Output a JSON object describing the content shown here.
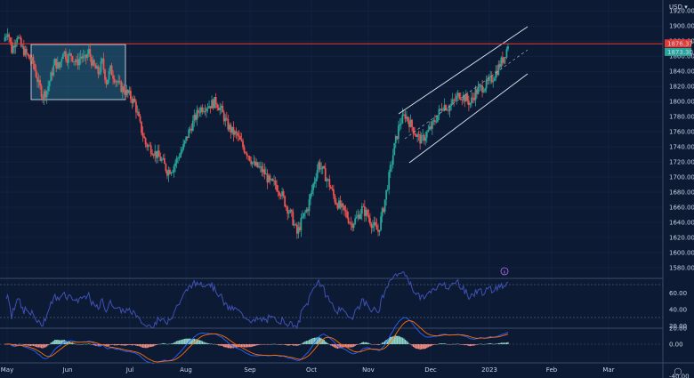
{
  "chart_data": {
    "type": "candlestick",
    "currency_label": "USD",
    "dropdown_glyph": "▾",
    "price_axis_ticks": [
      1580,
      1600,
      1620,
      1640,
      1660,
      1680,
      1700,
      1720,
      1740,
      1760,
      1780,
      1800,
      1820,
      1840,
      1860,
      1880,
      1900,
      1920
    ],
    "price_axis_tick_labels": [
      "1580.00",
      "1600.00",
      "1620.00",
      "1640.00",
      "1660.00",
      "1680.00",
      "1700.00",
      "1720.00",
      "1740.00",
      "1760.00",
      "1780.00",
      "1800.00",
      "1820.00",
      "1840.00",
      "1860.00",
      "1880.00",
      "1900.00",
      "1920.00"
    ],
    "ylim": [
      1567,
      1925
    ],
    "horizontal_line": {
      "value": 1876.37,
      "label": "1876.37",
      "color": "#e53935"
    },
    "last_price": {
      "value": 1873.3,
      "label": "1873.30",
      "color": "#26a69a"
    },
    "months": [
      "May",
      "Jun",
      "Jul",
      "Aug",
      "Sep",
      "Oct",
      "Nov",
      "Dec",
      "2023",
      "Feb",
      "Mar"
    ],
    "rsi": {
      "ticks": [
        20,
        40,
        60
      ],
      "tick_labels": [
        "20.00",
        "40.00",
        "60.00"
      ],
      "levels": [
        30,
        70
      ],
      "color": "#3f51b5"
    },
    "macd": {
      "ticks": [
        -40,
        0,
        20
      ],
      "tick_labels": [
        "-40.00",
        "0.00",
        "20.00"
      ]
    },
    "price_series": [
      {
        "t": 0,
        "c": 1880
      },
      {
        "t": 3,
        "c": 1895
      },
      {
        "t": 6,
        "c": 1868
      },
      {
        "t": 10,
        "c": 1888
      },
      {
        "t": 13,
        "c": 1872
      },
      {
        "t": 17,
        "c": 1862
      },
      {
        "t": 22,
        "c": 1850
      },
      {
        "t": 26,
        "c": 1822
      },
      {
        "t": 29,
        "c": 1808
      },
      {
        "t": 32,
        "c": 1815
      },
      {
        "t": 35,
        "c": 1833
      },
      {
        "t": 38,
        "c": 1852
      },
      {
        "t": 41,
        "c": 1845
      },
      {
        "t": 44,
        "c": 1868
      },
      {
        "t": 47,
        "c": 1858
      },
      {
        "t": 50,
        "c": 1862
      },
      {
        "t": 54,
        "c": 1850
      },
      {
        "t": 57,
        "c": 1860
      },
      {
        "t": 60,
        "c": 1855
      },
      {
        "t": 63,
        "c": 1866
      },
      {
        "t": 66,
        "c": 1848
      },
      {
        "t": 70,
        "c": 1838
      },
      {
        "t": 73,
        "c": 1852
      },
      {
        "t": 76,
        "c": 1826
      },
      {
        "t": 79,
        "c": 1842
      },
      {
        "t": 82,
        "c": 1832
      },
      {
        "t": 85,
        "c": 1822
      },
      {
        "t": 89,
        "c": 1815
      },
      {
        "t": 93,
        "c": 1808
      },
      {
        "t": 97,
        "c": 1798
      },
      {
        "t": 101,
        "c": 1768
      },
      {
        "t": 105,
        "c": 1744
      },
      {
        "t": 109,
        "c": 1738
      },
      {
        "t": 113,
        "c": 1730
      },
      {
        "t": 117,
        "c": 1722
      },
      {
        "t": 121,
        "c": 1708
      },
      {
        "t": 125,
        "c": 1712
      },
      {
        "t": 129,
        "c": 1726
      },
      {
        "t": 133,
        "c": 1740
      },
      {
        "t": 137,
        "c": 1760
      },
      {
        "t": 141,
        "c": 1776
      },
      {
        "t": 145,
        "c": 1790
      },
      {
        "t": 149,
        "c": 1794
      },
      {
        "t": 153,
        "c": 1796
      },
      {
        "t": 157,
        "c": 1800
      },
      {
        "t": 161,
        "c": 1788
      },
      {
        "t": 165,
        "c": 1770
      },
      {
        "t": 169,
        "c": 1760
      },
      {
        "t": 173,
        "c": 1754
      },
      {
        "t": 177,
        "c": 1740
      },
      {
        "t": 181,
        "c": 1730
      },
      {
        "t": 185,
        "c": 1716
      },
      {
        "t": 189,
        "c": 1712
      },
      {
        "t": 193,
        "c": 1705
      },
      {
        "t": 197,
        "c": 1692
      },
      {
        "t": 201,
        "c": 1690
      },
      {
        "t": 205,
        "c": 1680
      },
      {
        "t": 209,
        "c": 1662
      },
      {
        "t": 213,
        "c": 1648
      },
      {
        "t": 217,
        "c": 1625
      },
      {
        "t": 221,
        "c": 1645
      },
      {
        "t": 225,
        "c": 1660
      },
      {
        "t": 229,
        "c": 1690
      },
      {
        "t": 233,
        "c": 1718
      },
      {
        "t": 237,
        "c": 1705
      },
      {
        "t": 241,
        "c": 1690
      },
      {
        "t": 245,
        "c": 1670
      },
      {
        "t": 249,
        "c": 1660
      },
      {
        "t": 253,
        "c": 1652
      },
      {
        "t": 257,
        "c": 1638
      },
      {
        "t": 261,
        "c": 1645
      },
      {
        "t": 265,
        "c": 1658
      },
      {
        "t": 269,
        "c": 1650
      },
      {
        "t": 273,
        "c": 1636
      },
      {
        "t": 277,
        "c": 1628
      },
      {
        "t": 281,
        "c": 1660
      },
      {
        "t": 285,
        "c": 1700
      },
      {
        "t": 289,
        "c": 1740
      },
      {
        "t": 293,
        "c": 1772
      },
      {
        "t": 297,
        "c": 1782
      },
      {
        "t": 301,
        "c": 1770
      },
      {
        "t": 305,
        "c": 1756
      },
      {
        "t": 309,
        "c": 1748
      },
      {
        "t": 313,
        "c": 1758
      },
      {
        "t": 317,
        "c": 1768
      },
      {
        "t": 321,
        "c": 1782
      },
      {
        "t": 325,
        "c": 1796
      },
      {
        "t": 329,
        "c": 1792
      },
      {
        "t": 333,
        "c": 1800
      },
      {
        "t": 337,
        "c": 1810
      },
      {
        "t": 341,
        "c": 1805
      },
      {
        "t": 345,
        "c": 1798
      },
      {
        "t": 349,
        "c": 1812
      },
      {
        "t": 353,
        "c": 1818
      },
      {
        "t": 357,
        "c": 1822
      },
      {
        "t": 361,
        "c": 1830
      },
      {
        "t": 365,
        "c": 1842
      },
      {
        "t": 369,
        "c": 1856
      },
      {
        "t": 373,
        "c": 1873.3
      }
    ]
  },
  "tools": {
    "settings_glyph": "◯"
  }
}
